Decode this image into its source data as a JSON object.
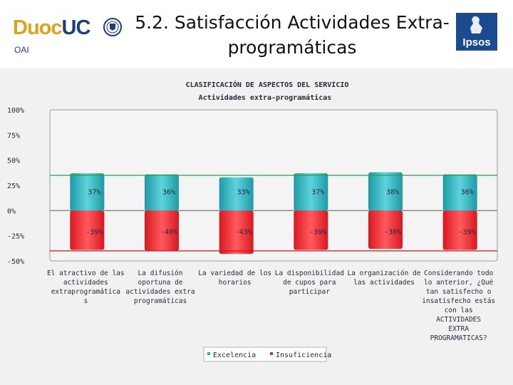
{
  "header": {
    "logo": {
      "duoc": "Duoc",
      "uc": "UC"
    },
    "oai_label": "OAI",
    "title_line1": "5.2. Satisfacción Actividades Extra-",
    "title_line2": "programáticas",
    "ipsos_label": "Ipsos"
  },
  "chart_data": {
    "type": "bar",
    "title": "CLASIFICACIÓN DE ASPECTOS DEL SERVICIO",
    "subtitle": "Actividades extra-programáticas",
    "ylim": [
      -50,
      100
    ],
    "yticks": [
      -50,
      -25,
      0,
      25,
      50,
      75,
      100
    ],
    "ytick_labels": [
      "-50%",
      "-25%",
      "0%",
      "25%",
      "50%",
      "75%",
      "100%"
    ],
    "reference_lines": {
      "excelencia": 35,
      "insuficiencia": -40
    },
    "categories": [
      [
        "El atractivo de las",
        "actividades",
        "extraprogramática",
        "s"
      ],
      [
        "La difusión",
        "oportuna de",
        "actividades extra",
        "programáticas"
      ],
      [
        "La variedad de los",
        "horarios"
      ],
      [
        "La disponibilidad",
        "de cupos para",
        "participar"
      ],
      [
        "La organización de",
        "las actividades"
      ],
      [
        "Considerando todo",
        "lo anterior, ¿Qué",
        "tan satisfecho o",
        "insatisfecho estás",
        "con las",
        "ACTIVIDADES",
        "EXTRA",
        "PROGRAMATICAS?"
      ]
    ],
    "series": [
      {
        "name": "Excelencia",
        "color": "#2bb3bf",
        "values": [
          37,
          36,
          33,
          37,
          38,
          36
        ],
        "labels": [
          "37%",
          "36%",
          "33%",
          "37%",
          "38%",
          "36%"
        ]
      },
      {
        "name": "Insuficiencia",
        "color": "#e8232b",
        "values": [
          -39,
          -40,
          -43,
          -39,
          -38,
          -39
        ],
        "labels": [
          "-39%",
          "-40%",
          "-43%",
          "-39%",
          "-38%",
          "-39%"
        ]
      }
    ],
    "legend": "bottom-center"
  }
}
